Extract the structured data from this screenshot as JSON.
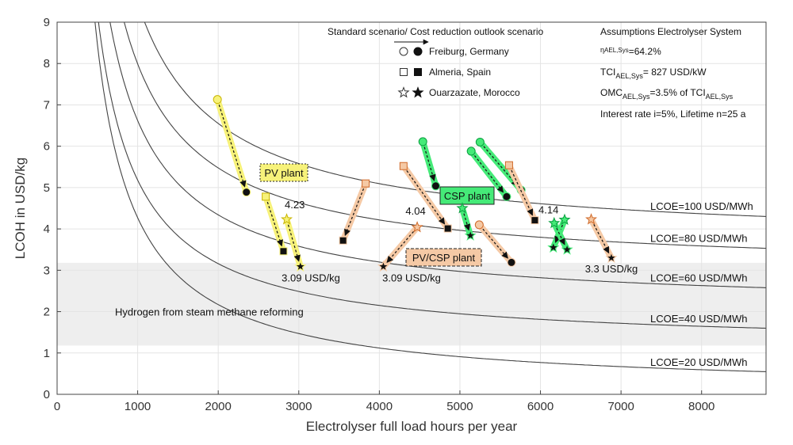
{
  "chart_data": {
    "type": "scatter",
    "xlabel": "Electrolyser full load hours per year",
    "ylabel": "LCOH in USD/kg",
    "xlim": [
      0,
      8800
    ],
    "ylim": [
      0,
      9
    ],
    "xticks": [
      0,
      1000,
      2000,
      3000,
      4000,
      5000,
      6000,
      7000,
      8000
    ],
    "yticks": [
      0,
      1,
      2,
      3,
      4,
      5,
      6,
      7,
      8,
      9
    ],
    "grid": true,
    "smr_band": {
      "label": "Hydrogen from steam methane reforming",
      "y_range": [
        1.18,
        3.18
      ]
    },
    "lcoe_curves": [
      {
        "label": "LCOE=100 USD/MWh",
        "a": 5820,
        "b": 3.64
      },
      {
        "label": "LCOE=80 USD/MWh",
        "a": 5030,
        "b": 2.96
      },
      {
        "label": "LCOE=60 USD/MWh",
        "a": 4560,
        "b": 2.06
      },
      {
        "label": "LCOE=40 USD/MWh",
        "a": 4040,
        "b": 1.14
      },
      {
        "label": "LCOE=20 USD/MWh",
        "a": 4200,
        "b": 0.07
      }
    ],
    "legend": {
      "title": "Standard scenario/ Cost reduction outlook scenario",
      "entries": [
        {
          "label": "Freiburg, Germany",
          "marker": "circle"
        },
        {
          "label": "Almeria, Spain",
          "marker": "square"
        },
        {
          "label": "Ouarzazate, Morocco",
          "marker": "star"
        }
      ]
    },
    "assumptions": {
      "title": "Assumptions Electrolyser System",
      "eta_sym": "η",
      "eta_sub": "AEL,Sys",
      "eta_val": "=64.2%",
      "tci_main": "TCI",
      "tci_sub": "AEL,Sys",
      "tci_val": "= 827 USD/kW",
      "omc_main": "OMC",
      "omc_sub": "AEL,Sys",
      "omc_mid": "=3.5% of TCI",
      "omc_sub2": "AEL,Sys",
      "interest": "Interest rate i=5%, Lifetime n=25 a"
    },
    "groups": [
      {
        "label": "PV plant",
        "color": "#f7f27a",
        "edge": "#c8b400"
      },
      {
        "label": "CSP plant",
        "color": "#45ea78",
        "edge": "#0aa040"
      },
      {
        "label": "PV/CSP plant",
        "color": "#f5c9a5",
        "edge": "#d06a2a"
      }
    ],
    "series": [
      {
        "group": "pv",
        "marker": "circle",
        "from": [
          1990,
          7.13
        ],
        "to": [
          2350,
          4.89
        ]
      },
      {
        "group": "pv",
        "marker": "square",
        "from": [
          2590,
          4.78
        ],
        "to": [
          2810,
          3.46
        ]
      },
      {
        "group": "pv",
        "marker": "star",
        "from": [
          2850,
          4.23
        ],
        "to": [
          3020,
          3.09
        ]
      },
      {
        "group": "hyb",
        "marker": "square",
        "from": [
          3830,
          5.1
        ],
        "to": [
          3550,
          3.72
        ]
      },
      {
        "group": "hyb",
        "marker": "square",
        "from": [
          4300,
          5.52
        ],
        "to": [
          4850,
          4.01
        ]
      },
      {
        "group": "hyb",
        "marker": "star",
        "from": [
          4470,
          4.04
        ],
        "to": [
          4050,
          3.09
        ]
      },
      {
        "group": "csp",
        "marker": "circle",
        "from": [
          4540,
          6.11
        ],
        "to": [
          4700,
          5.04
        ]
      },
      {
        "group": "csp",
        "marker": "star",
        "from": [
          5030,
          4.5
        ],
        "to": [
          5130,
          3.84
        ]
      },
      {
        "group": "csp",
        "marker": "circle",
        "from": [
          5140,
          5.88
        ],
        "to": [
          5580,
          4.78
        ]
      },
      {
        "group": "csp",
        "marker": "circle",
        "from": [
          5250,
          6.1
        ],
        "to": [
          5760,
          4.94
        ]
      },
      {
        "group": "hyb",
        "marker": "circle",
        "from": [
          5240,
          4.1
        ],
        "to": [
          5640,
          3.19
        ]
      },
      {
        "group": "hyb",
        "marker": "square",
        "from": [
          5610,
          5.54
        ],
        "to": [
          5930,
          4.21
        ]
      },
      {
        "group": "csp",
        "marker": "star",
        "from": [
          6300,
          4.22
        ],
        "to": [
          6160,
          3.55
        ]
      },
      {
        "group": "csp",
        "marker": "star",
        "from": [
          6170,
          4.14
        ],
        "to": [
          6330,
          3.5
        ]
      },
      {
        "group": "hyb",
        "marker": "star",
        "from": [
          6630,
          4.23
        ],
        "to": [
          6880,
          3.3
        ]
      }
    ],
    "annotations": [
      {
        "text": "4.23",
        "x": 2950,
        "y": 4.5
      },
      {
        "text": "3.09 USD/kg",
        "x": 3150,
        "y": 2.73
      },
      {
        "text": "4.04",
        "x": 4450,
        "y": 4.35
      },
      {
        "text": "3.09 USD/kg",
        "x": 4400,
        "y": 2.73
      },
      {
        "text": "4.14",
        "x": 6100,
        "y": 4.38
      },
      {
        "text": "3.3 USD/kg",
        "x": 6880,
        "y": 2.95
      }
    ]
  }
}
